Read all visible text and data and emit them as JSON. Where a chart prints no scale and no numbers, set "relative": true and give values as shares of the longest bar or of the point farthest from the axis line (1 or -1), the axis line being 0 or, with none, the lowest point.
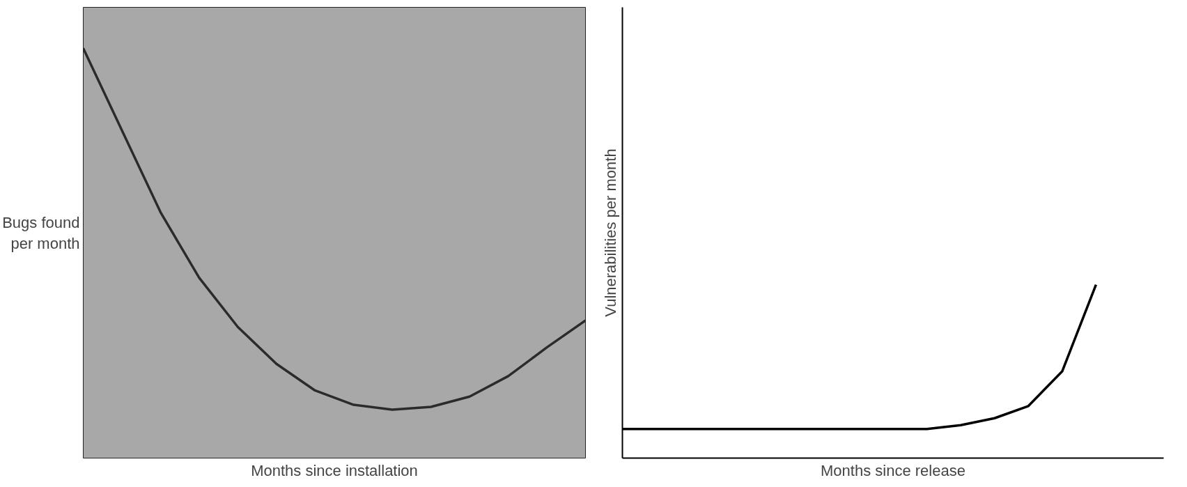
{
  "chart_data": [
    {
      "type": "line",
      "relative": true,
      "xlabel": "Months since installation",
      "ylabel": "Bugs found\nper month",
      "categories": [
        null,
        null,
        null,
        null,
        null,
        null,
        null,
        null,
        null,
        null,
        null,
        null,
        null,
        null
      ],
      "series": [
        {
          "color": "#2b2b2b",
          "values": [
            1.0,
            0.8,
            0.6,
            0.44,
            0.32,
            0.23,
            0.165,
            0.13,
            0.118,
            0.125,
            0.15,
            0.2,
            0.27,
            0.336
          ]
        }
      ]
    },
    {
      "type": "line",
      "relative": true,
      "xlabel": "Months since release",
      "ylabel": "Vulnerabilities per month",
      "categories": [
        null,
        null,
        null,
        null,
        null,
        null,
        null,
        null,
        null,
        null,
        null,
        null,
        null,
        null,
        null
      ],
      "series": [
        {
          "color": "#000000",
          "values": [
            0.168,
            0.168,
            0.168,
            0.168,
            0.168,
            0.168,
            0.168,
            0.168,
            0.168,
            0.168,
            0.19,
            0.23,
            0.3,
            0.5,
            1.0
          ]
        }
      ]
    }
  ]
}
